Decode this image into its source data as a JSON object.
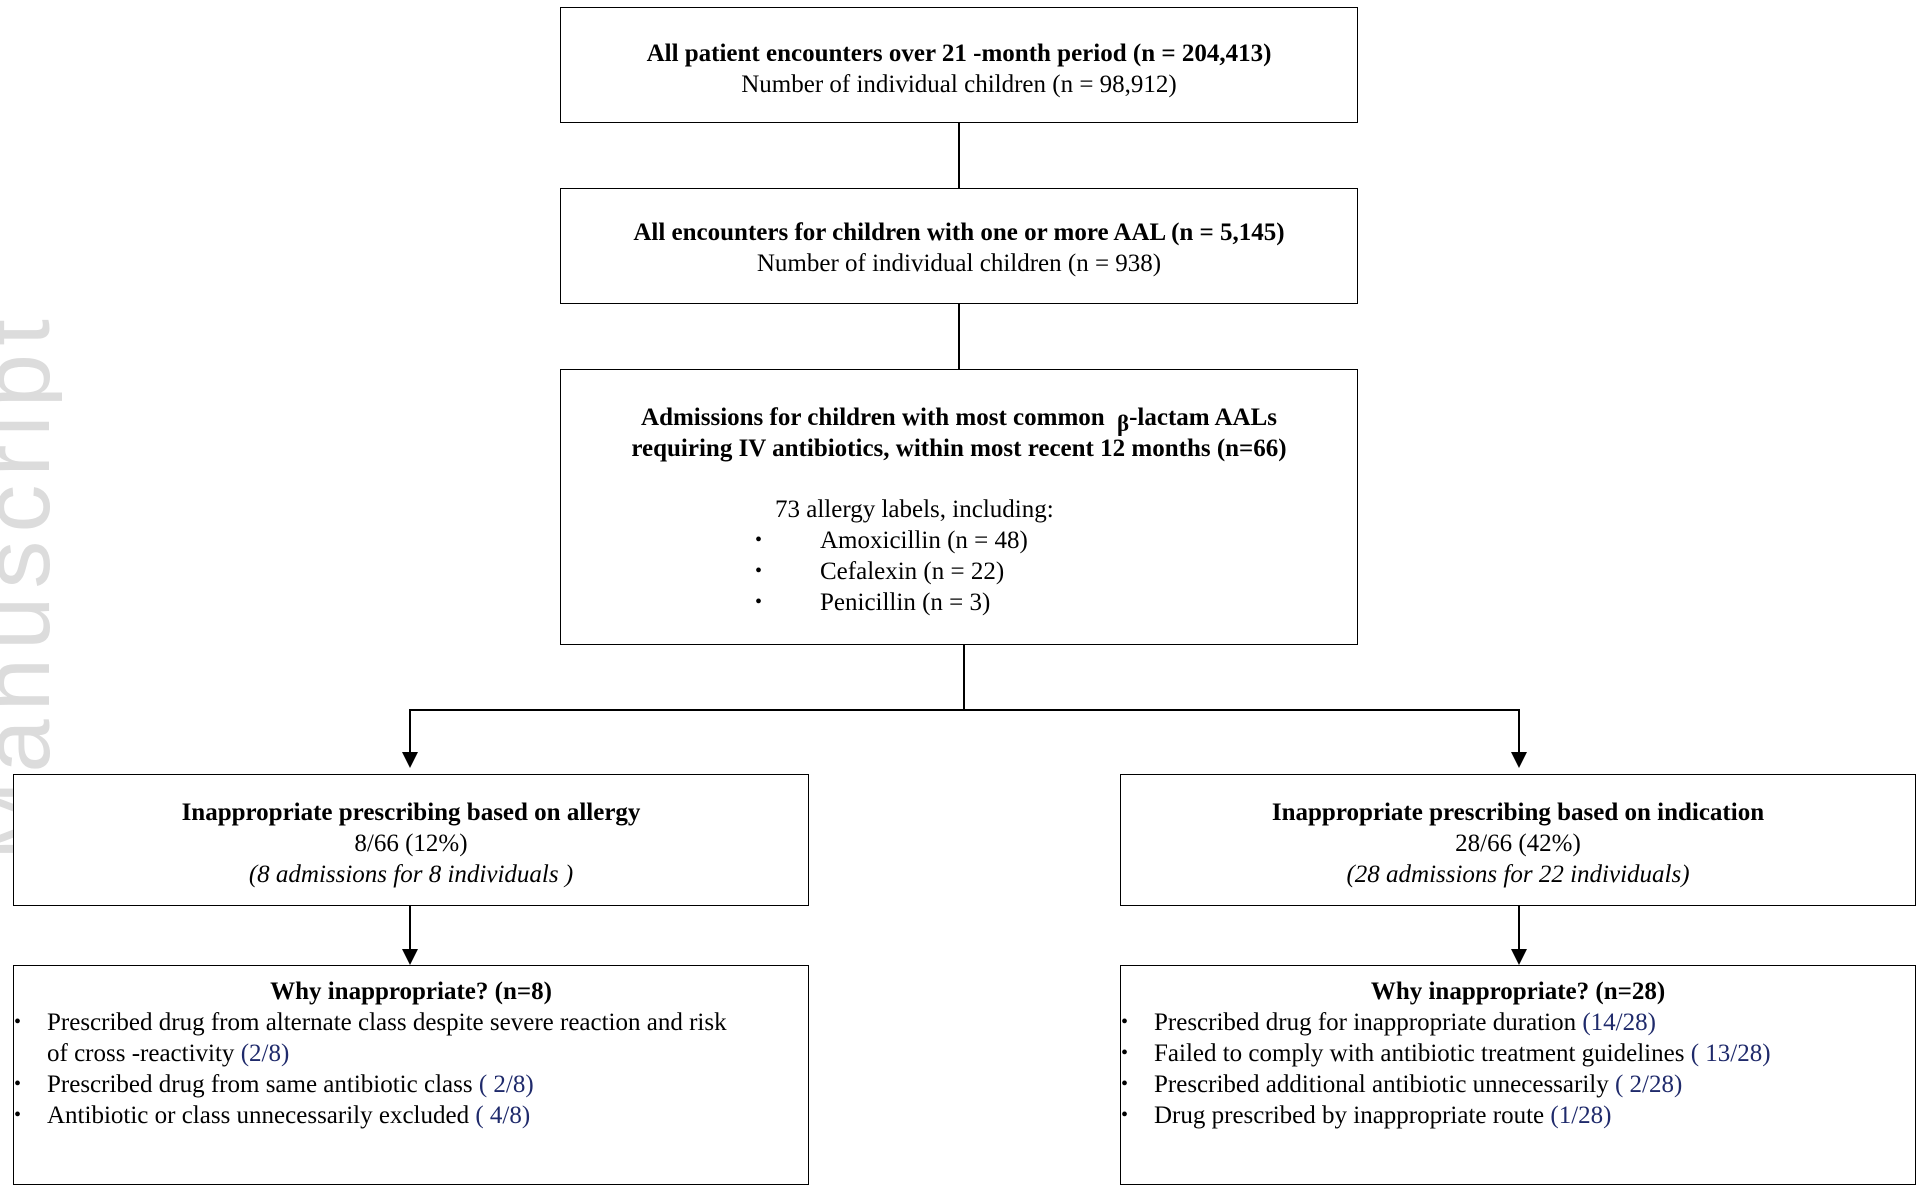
{
  "watermark": "Manuscript",
  "box1": {
    "title": "All patient encounters over 21 -month period (n = 204,413)",
    "sub": "Number of individual children (n = 98,912)"
  },
  "box2": {
    "title": "All encounters for children with one or more AAL (n = 5,145)",
    "sub": "Number of individual children (n = 938)"
  },
  "box3": {
    "title_line1_pre": "Admissions for children with most common",
    "beta": "β",
    "title_line1_post": "-lactam AALs",
    "title_line2": "requiring IV antibiotics, within most recent 12 months (n=66)",
    "labels_intro": "73 allergy labels, including:",
    "items": [
      "Amoxicillin (n = 48)",
      "Cefalexin (n = 22)",
      "Penicillin (n = 3)"
    ]
  },
  "left_box": {
    "title": "Inappropriate prescribing based on allergy",
    "ratio": "8/66 (12%)",
    "note": "(8 admissions for 8 individuals )"
  },
  "right_box": {
    "title": "Inappropriate prescribing based on indication",
    "ratio": "28/66 (42%)",
    "note": "(28 admissions for 22 individuals)"
  },
  "left_why": {
    "title": "Why inappropriate? (n=8)",
    "items": [
      {
        "text": "Prescribed drug from alternate class despite severe reaction and risk of cross -reactivity ",
        "count": "(2/8)"
      },
      {
        "text": "Prescribed drug from same antibiotic class ",
        "count": "( 2/8)"
      },
      {
        "text": "Antibiotic or class unnecessarily excluded ",
        "count": "( 4/8)"
      }
    ]
  },
  "right_why": {
    "title": "Why inappropriate? (n=28)",
    "items": [
      {
        "text": "Prescribed drug for inappropriate duration ",
        "count": "(14/28)"
      },
      {
        "text": "Failed to comply with antibiotic treatment guidelines ",
        "count": "( 13/28)"
      },
      {
        "text": "Prescribed additional antibiotic unnecessarily ",
        "count": "( 2/28)"
      },
      {
        "text": "Drug prescribed by inappropriate route ",
        "count": "(1/28)"
      }
    ]
  }
}
